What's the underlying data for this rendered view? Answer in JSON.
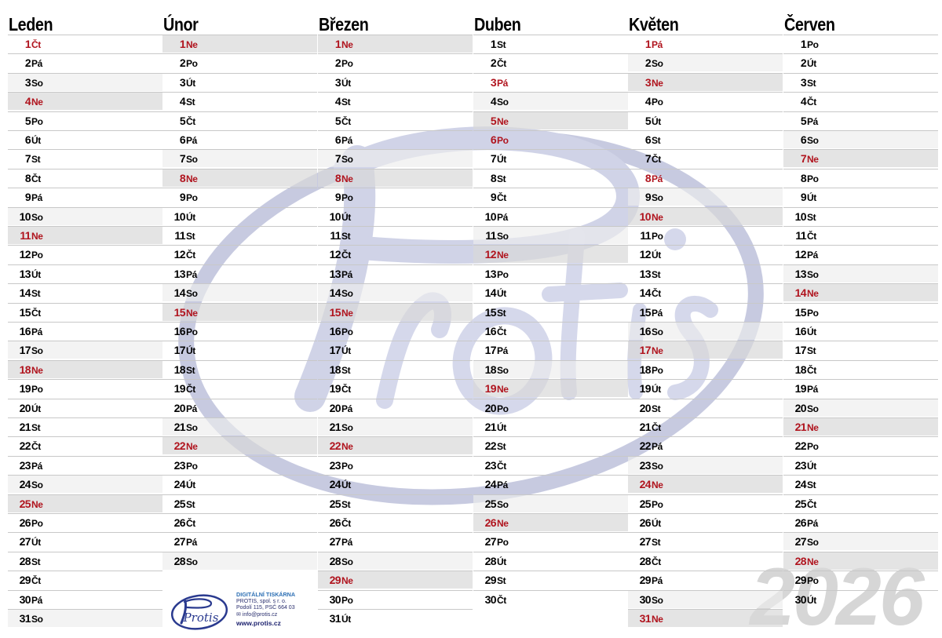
{
  "year": "2026",
  "colors": {
    "sunday_holiday_text": "#b0141e",
    "normal_text": "#000000",
    "sunday_shade": "#d8d8d8",
    "saturday_shade": "#ececec",
    "logo_watermark": "#9aa0c8"
  },
  "brand": {
    "name": "Protis"
  },
  "months": [
    {
      "name": "Leden",
      "days": [
        {
          "n": "1",
          "wd": "Čt",
          "hol": true
        },
        {
          "n": "2",
          "wd": "Pá"
        },
        {
          "n": "3",
          "wd": "So"
        },
        {
          "n": "4",
          "wd": "Ne"
        },
        {
          "n": "5",
          "wd": "Po"
        },
        {
          "n": "6",
          "wd": "Út"
        },
        {
          "n": "7",
          "wd": "St"
        },
        {
          "n": "8",
          "wd": "Čt"
        },
        {
          "n": "9",
          "wd": "Pá"
        },
        {
          "n": "10",
          "wd": "So"
        },
        {
          "n": "11",
          "wd": "Ne"
        },
        {
          "n": "12",
          "wd": "Po"
        },
        {
          "n": "13",
          "wd": "Út"
        },
        {
          "n": "14",
          "wd": "St"
        },
        {
          "n": "15",
          "wd": "Čt"
        },
        {
          "n": "16",
          "wd": "Pá"
        },
        {
          "n": "17",
          "wd": "So"
        },
        {
          "n": "18",
          "wd": "Ne"
        },
        {
          "n": "19",
          "wd": "Po"
        },
        {
          "n": "20",
          "wd": "Út"
        },
        {
          "n": "21",
          "wd": "St"
        },
        {
          "n": "22",
          "wd": "Čt"
        },
        {
          "n": "23",
          "wd": "Pá"
        },
        {
          "n": "24",
          "wd": "So"
        },
        {
          "n": "25",
          "wd": "Ne"
        },
        {
          "n": "26",
          "wd": "Po"
        },
        {
          "n": "27",
          "wd": "Út"
        },
        {
          "n": "28",
          "wd": "St"
        },
        {
          "n": "29",
          "wd": "Čt"
        },
        {
          "n": "30",
          "wd": "Pá"
        },
        {
          "n": "31",
          "wd": "So"
        }
      ]
    },
    {
      "name": "Únor",
      "days": [
        {
          "n": "1",
          "wd": "Ne"
        },
        {
          "n": "2",
          "wd": "Po"
        },
        {
          "n": "3",
          "wd": "Út"
        },
        {
          "n": "4",
          "wd": "St"
        },
        {
          "n": "5",
          "wd": "Čt"
        },
        {
          "n": "6",
          "wd": "Pá"
        },
        {
          "n": "7",
          "wd": "So"
        },
        {
          "n": "8",
          "wd": "Ne"
        },
        {
          "n": "9",
          "wd": "Po"
        },
        {
          "n": "10",
          "wd": "Út"
        },
        {
          "n": "11",
          "wd": "St"
        },
        {
          "n": "12",
          "wd": "Čt"
        },
        {
          "n": "13",
          "wd": "Pá"
        },
        {
          "n": "14",
          "wd": "So"
        },
        {
          "n": "15",
          "wd": "Ne"
        },
        {
          "n": "16",
          "wd": "Po"
        },
        {
          "n": "17",
          "wd": "Út"
        },
        {
          "n": "18",
          "wd": "St"
        },
        {
          "n": "19",
          "wd": "Čt"
        },
        {
          "n": "20",
          "wd": "Pá"
        },
        {
          "n": "21",
          "wd": "So"
        },
        {
          "n": "22",
          "wd": "Ne"
        },
        {
          "n": "23",
          "wd": "Po"
        },
        {
          "n": "24",
          "wd": "Út"
        },
        {
          "n": "25",
          "wd": "St"
        },
        {
          "n": "26",
          "wd": "Čt"
        },
        {
          "n": "27",
          "wd": "Pá"
        },
        {
          "n": "28",
          "wd": "So"
        }
      ]
    },
    {
      "name": "Březen",
      "days": [
        {
          "n": "1",
          "wd": "Ne"
        },
        {
          "n": "2",
          "wd": "Po"
        },
        {
          "n": "3",
          "wd": "Út"
        },
        {
          "n": "4",
          "wd": "St"
        },
        {
          "n": "5",
          "wd": "Čt"
        },
        {
          "n": "6",
          "wd": "Pá"
        },
        {
          "n": "7",
          "wd": "So"
        },
        {
          "n": "8",
          "wd": "Ne"
        },
        {
          "n": "9",
          "wd": "Po"
        },
        {
          "n": "10",
          "wd": "Út"
        },
        {
          "n": "11",
          "wd": "St"
        },
        {
          "n": "12",
          "wd": "Čt"
        },
        {
          "n": "13",
          "wd": "Pá"
        },
        {
          "n": "14",
          "wd": "So"
        },
        {
          "n": "15",
          "wd": "Ne"
        },
        {
          "n": "16",
          "wd": "Po"
        },
        {
          "n": "17",
          "wd": "Út"
        },
        {
          "n": "18",
          "wd": "St"
        },
        {
          "n": "19",
          "wd": "Čt"
        },
        {
          "n": "20",
          "wd": "Pá"
        },
        {
          "n": "21",
          "wd": "So"
        },
        {
          "n": "22",
          "wd": "Ne"
        },
        {
          "n": "23",
          "wd": "Po"
        },
        {
          "n": "24",
          "wd": "Út"
        },
        {
          "n": "25",
          "wd": "St"
        },
        {
          "n": "26",
          "wd": "Čt"
        },
        {
          "n": "27",
          "wd": "Pá"
        },
        {
          "n": "28",
          "wd": "So"
        },
        {
          "n": "29",
          "wd": "Ne"
        },
        {
          "n": "30",
          "wd": "Po"
        },
        {
          "n": "31",
          "wd": "Út"
        }
      ]
    },
    {
      "name": "Duben",
      "days": [
        {
          "n": "1",
          "wd": "St"
        },
        {
          "n": "2",
          "wd": "Čt"
        },
        {
          "n": "3",
          "wd": "Pá",
          "hol": true
        },
        {
          "n": "4",
          "wd": "So"
        },
        {
          "n": "5",
          "wd": "Ne"
        },
        {
          "n": "6",
          "wd": "Po",
          "hol": true
        },
        {
          "n": "7",
          "wd": "Út"
        },
        {
          "n": "8",
          "wd": "St"
        },
        {
          "n": "9",
          "wd": "Čt"
        },
        {
          "n": "10",
          "wd": "Pá"
        },
        {
          "n": "11",
          "wd": "So"
        },
        {
          "n": "12",
          "wd": "Ne"
        },
        {
          "n": "13",
          "wd": "Po"
        },
        {
          "n": "14",
          "wd": "Út"
        },
        {
          "n": "15",
          "wd": "St"
        },
        {
          "n": "16",
          "wd": "Čt"
        },
        {
          "n": "17",
          "wd": "Pá"
        },
        {
          "n": "18",
          "wd": "So"
        },
        {
          "n": "19",
          "wd": "Ne"
        },
        {
          "n": "20",
          "wd": "Po"
        },
        {
          "n": "21",
          "wd": "Út"
        },
        {
          "n": "22",
          "wd": "St"
        },
        {
          "n": "23",
          "wd": "Čt"
        },
        {
          "n": "24",
          "wd": "Pá"
        },
        {
          "n": "25",
          "wd": "So"
        },
        {
          "n": "26",
          "wd": "Ne"
        },
        {
          "n": "27",
          "wd": "Po"
        },
        {
          "n": "28",
          "wd": "Út"
        },
        {
          "n": "29",
          "wd": "St"
        },
        {
          "n": "30",
          "wd": "Čt"
        }
      ]
    },
    {
      "name": "Květen",
      "days": [
        {
          "n": "1",
          "wd": "Pá",
          "hol": true
        },
        {
          "n": "2",
          "wd": "So"
        },
        {
          "n": "3",
          "wd": "Ne"
        },
        {
          "n": "4",
          "wd": "Po"
        },
        {
          "n": "5",
          "wd": "Út"
        },
        {
          "n": "6",
          "wd": "St"
        },
        {
          "n": "7",
          "wd": "Čt"
        },
        {
          "n": "8",
          "wd": "Pá",
          "hol": true
        },
        {
          "n": "9",
          "wd": "So"
        },
        {
          "n": "10",
          "wd": "Ne"
        },
        {
          "n": "11",
          "wd": "Po"
        },
        {
          "n": "12",
          "wd": "Út"
        },
        {
          "n": "13",
          "wd": "St"
        },
        {
          "n": "14",
          "wd": "Čt"
        },
        {
          "n": "15",
          "wd": "Pá"
        },
        {
          "n": "16",
          "wd": "So"
        },
        {
          "n": "17",
          "wd": "Ne"
        },
        {
          "n": "18",
          "wd": "Po"
        },
        {
          "n": "19",
          "wd": "Út"
        },
        {
          "n": "20",
          "wd": "St"
        },
        {
          "n": "21",
          "wd": "Čt"
        },
        {
          "n": "22",
          "wd": "Pá"
        },
        {
          "n": "23",
          "wd": "So"
        },
        {
          "n": "24",
          "wd": "Ne"
        },
        {
          "n": "25",
          "wd": "Po"
        },
        {
          "n": "26",
          "wd": "Út"
        },
        {
          "n": "27",
          "wd": "St"
        },
        {
          "n": "28",
          "wd": "Čt"
        },
        {
          "n": "29",
          "wd": "Pá"
        },
        {
          "n": "30",
          "wd": "So"
        },
        {
          "n": "31",
          "wd": "Ne"
        }
      ]
    },
    {
      "name": "Červen",
      "days": [
        {
          "n": "1",
          "wd": "Po"
        },
        {
          "n": "2",
          "wd": "Út"
        },
        {
          "n": "3",
          "wd": "St"
        },
        {
          "n": "4",
          "wd": "Čt"
        },
        {
          "n": "5",
          "wd": "Pá"
        },
        {
          "n": "6",
          "wd": "So"
        },
        {
          "n": "7",
          "wd": "Ne"
        },
        {
          "n": "8",
          "wd": "Po"
        },
        {
          "n": "9",
          "wd": "Út"
        },
        {
          "n": "10",
          "wd": "St"
        },
        {
          "n": "11",
          "wd": "Čt"
        },
        {
          "n": "12",
          "wd": "Pá"
        },
        {
          "n": "13",
          "wd": "So"
        },
        {
          "n": "14",
          "wd": "Ne"
        },
        {
          "n": "15",
          "wd": "Po"
        },
        {
          "n": "16",
          "wd": "Út"
        },
        {
          "n": "17",
          "wd": "St"
        },
        {
          "n": "18",
          "wd": "Čt"
        },
        {
          "n": "19",
          "wd": "Pá"
        },
        {
          "n": "20",
          "wd": "So"
        },
        {
          "n": "21",
          "wd": "Ne"
        },
        {
          "n": "22",
          "wd": "Po"
        },
        {
          "n": "23",
          "wd": "Út"
        },
        {
          "n": "24",
          "wd": "St"
        },
        {
          "n": "25",
          "wd": "Čt"
        },
        {
          "n": "26",
          "wd": "Pá"
        },
        {
          "n": "27",
          "wd": "So"
        },
        {
          "n": "28",
          "wd": "Ne"
        },
        {
          "n": "29",
          "wd": "Po"
        },
        {
          "n": "30",
          "wd": "Út"
        }
      ]
    }
  ],
  "printer": {
    "logo_text": "Protis",
    "title": "DIGITÁLNÍ TISKÁRNA",
    "company": "PROTIS, spol. s r. o.",
    "address": "Podolí 115, PSČ 664 03",
    "email": "info@protis.cz",
    "web": "www.protis.cz"
  }
}
